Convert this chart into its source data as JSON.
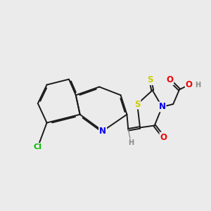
{
  "background_color": "#ebebeb",
  "atom_colors": {
    "C": "#000000",
    "N": "#0000ee",
    "O": "#ee0000",
    "S": "#cccc00",
    "Cl": "#00bb00",
    "H": "#888888"
  },
  "bond_color": "#1a1a1a",
  "lw": 1.4,
  "dbo": 0.055,
  "fs": 8.5,
  "fsh": 7.0
}
